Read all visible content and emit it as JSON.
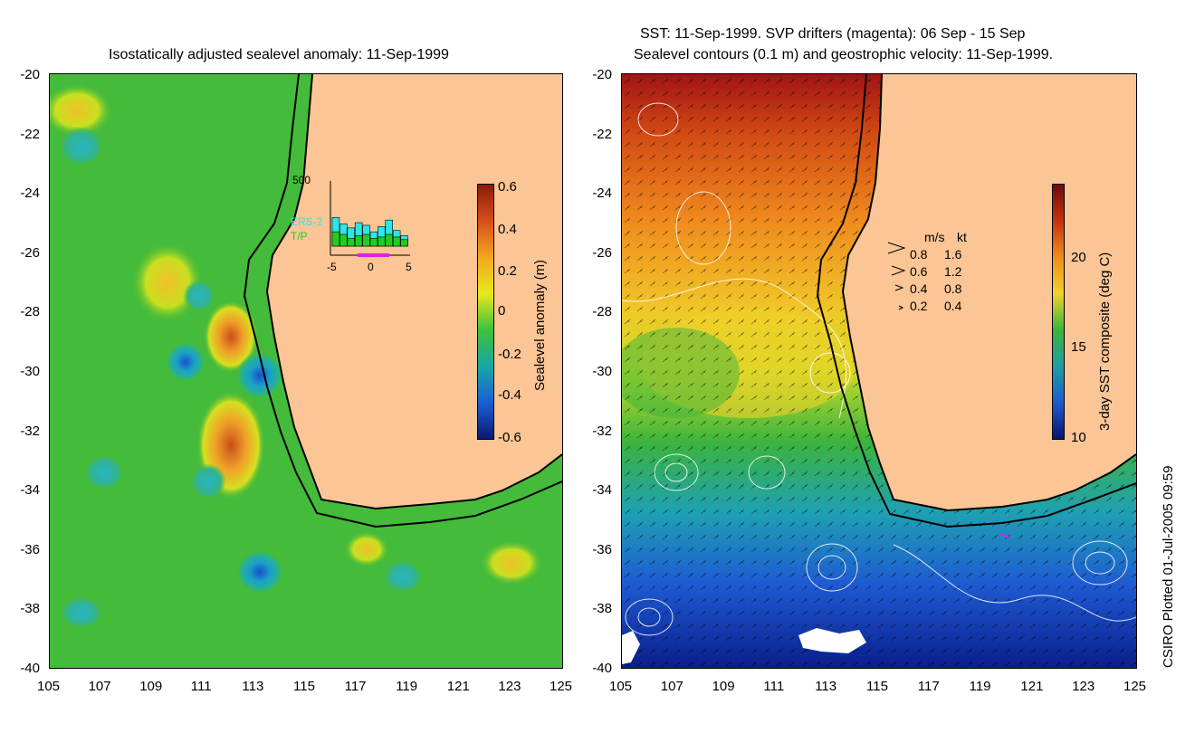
{
  "left_panel": {
    "title": "Isostatically adjusted sealevel anomaly: 11-Sep-1999",
    "colorbar": {
      "label": "Sealevel anomaly (m)",
      "ticks": [
        "0.6",
        "0.4",
        "0.2",
        "0",
        "-0.2",
        "-0.4",
        "-0.6"
      ],
      "colors": [
        "#8b1a0a",
        "#d4501a",
        "#f5a623",
        "#e8e81c",
        "#3cc23c",
        "#1aa5a5",
        "#1a5fd4",
        "#0a1a6e"
      ]
    },
    "inset": {
      "y_max_label": "500",
      "x_ticks": [
        "-5",
        "0",
        "5"
      ],
      "legend": [
        {
          "name": "ERS-2",
          "color": "#2ee6e6"
        },
        {
          "name": "T/P",
          "color": "#22cc22"
        }
      ],
      "bars_ers2": [
        220,
        170,
        140,
        180,
        160,
        110,
        150,
        200,
        120,
        80
      ],
      "bars_tp": [
        110,
        90,
        60,
        80,
        90,
        60,
        70,
        90,
        70,
        50
      ]
    }
  },
  "right_panel": {
    "title_line1": "SST: 11-Sep-1999. SVP drifters (magenta): 06 Sep - 15 Sep",
    "title_line2": "Sealevel contours (0.1 m) and geostrophic velocity: 11-Sep-1999.",
    "colorbar": {
      "label": "3-day SST composite (deg C)",
      "ticks": [
        "20",
        "15",
        "10"
      ],
      "colors": [
        "#6e0a0a",
        "#c8320f",
        "#f08c1e",
        "#f0d228",
        "#3cb43c",
        "#1ea0a0",
        "#1e5ad2",
        "#0a146e"
      ]
    },
    "velocity_legend": {
      "header_ms": "m/s",
      "header_kt": "kt",
      "rows": [
        {
          "ms": "0.8",
          "kt": "1.6"
        },
        {
          "ms": "0.6",
          "kt": "1.2"
        },
        {
          "ms": "0.4",
          "kt": "0.8"
        },
        {
          "ms": "0.2",
          "kt": "0.4"
        }
      ]
    }
  },
  "axes": {
    "lat_ticks": [
      "-20",
      "-22",
      "-24",
      "-26",
      "-28",
      "-30",
      "-32",
      "-34",
      "-36",
      "-38",
      "-40"
    ],
    "lon_ticks": [
      "105",
      "107",
      "109",
      "111",
      "113",
      "115",
      "117",
      "119",
      "121",
      "123",
      "125"
    ]
  },
  "footer": {
    "plotted_note": "CSIRO Plotted 01-Jul-2005 09:59"
  },
  "palette": {
    "land": "#fbc595",
    "ocean_base": "#44bb3a",
    "coast": "#000000"
  }
}
